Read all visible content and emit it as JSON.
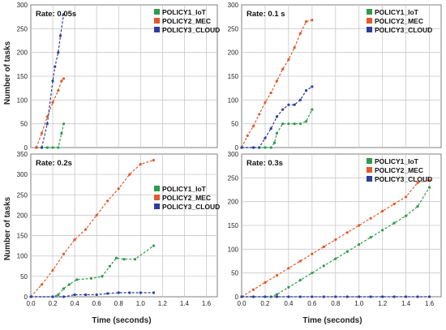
{
  "figure": {
    "ylabel": "Number of tasks",
    "xlabel": "Time (seconds)"
  },
  "colors": {
    "POLICY1_IoT": "#2e9b4a",
    "POLICY2_MEC": "#e2592a",
    "POLICY3_CLOUD": "#2c3f99"
  },
  "chart_data": [
    {
      "type": "line",
      "title": "Rate: 0.05s",
      "xlabel": "",
      "ylabel": "Number of tasks",
      "xlim": [
        0,
        1.7
      ],
      "ylim": [
        0,
        300
      ],
      "yticks": [
        0,
        50,
        100,
        150,
        200,
        250,
        300
      ],
      "xticks": [],
      "grid": true,
      "legend": "top-right",
      "series": [
        {
          "name": "POLICY1_IoT",
          "color": "#2e9b4a",
          "x": [
            0.05,
            0.1,
            0.15,
            0.2,
            0.25,
            0.28,
            0.3
          ],
          "y": [
            0,
            0,
            0,
            0,
            0,
            30,
            50
          ]
        },
        {
          "name": "POLICY2_MEC",
          "color": "#e2592a",
          "x": [
            0.05,
            0.1,
            0.15,
            0.2,
            0.25,
            0.28,
            0.3
          ],
          "y": [
            0,
            30,
            65,
            95,
            120,
            140,
            145
          ]
        },
        {
          "name": "POLICY3_CLOUD",
          "color": "#2c3f99",
          "x": [
            0.1,
            0.15,
            0.2,
            0.22,
            0.25,
            0.27,
            0.3
          ],
          "y": [
            0,
            50,
            140,
            170,
            200,
            235,
            280
          ]
        }
      ]
    },
    {
      "type": "line",
      "title": "Rate: 0.1 s",
      "xlabel": "",
      "ylabel": "",
      "xlim": [
        0,
        1.7
      ],
      "ylim": [
        0,
        300
      ],
      "yticks": [
        0,
        50,
        100,
        150,
        200,
        250,
        300
      ],
      "xticks": [],
      "grid": true,
      "legend": "top-right",
      "series": [
        {
          "name": "POLICY1_IoT",
          "color": "#2e9b4a",
          "x": [
            0.0,
            0.1,
            0.2,
            0.25,
            0.28,
            0.3,
            0.35,
            0.4,
            0.45,
            0.5,
            0.55,
            0.6
          ],
          "y": [
            0,
            0,
            0,
            0,
            10,
            30,
            50,
            50,
            50,
            50,
            55,
            80
          ]
        },
        {
          "name": "POLICY2_MEC",
          "color": "#e2592a",
          "x": [
            0.0,
            0.05,
            0.1,
            0.15,
            0.2,
            0.25,
            0.3,
            0.35,
            0.4,
            0.45,
            0.5,
            0.55,
            0.6
          ],
          "y": [
            0,
            25,
            45,
            70,
            95,
            115,
            140,
            165,
            185,
            210,
            240,
            265,
            268
          ]
        },
        {
          "name": "POLICY3_CLOUD",
          "color": "#2c3f99",
          "x": [
            0.0,
            0.1,
            0.15,
            0.2,
            0.25,
            0.3,
            0.35,
            0.4,
            0.45,
            0.5,
            0.55,
            0.6
          ],
          "y": [
            0,
            0,
            0,
            20,
            40,
            65,
            80,
            90,
            90,
            100,
            120,
            128
          ]
        }
      ]
    },
    {
      "type": "line",
      "title": "Rate: 0.2s",
      "xlabel": "Time (seconds)",
      "ylabel": "Number of tasks",
      "xlim": [
        0,
        1.7
      ],
      "ylim": [
        0,
        350
      ],
      "yticks": [
        0,
        50,
        100,
        150,
        200,
        250,
        300,
        350
      ],
      "xticks": [
        0.0,
        0.2,
        0.4,
        0.6,
        0.8,
        1.0,
        1.2,
        1.4,
        1.6
      ],
      "grid": true,
      "legend": "center-right",
      "series": [
        {
          "name": "POLICY1_IoT",
          "color": "#2e9b4a",
          "x": [
            0.0,
            0.2,
            0.25,
            0.3,
            0.35,
            0.42,
            0.55,
            0.65,
            0.72,
            0.78,
            0.85,
            0.95,
            1.12
          ],
          "y": [
            0,
            0,
            5,
            20,
            30,
            42,
            45,
            50,
            75,
            95,
            92,
            92,
            125
          ]
        },
        {
          "name": "POLICY2_MEC",
          "color": "#e2592a",
          "x": [
            0.0,
            0.1,
            0.2,
            0.3,
            0.4,
            0.5,
            0.6,
            0.7,
            0.8,
            0.9,
            1.0,
            1.12
          ],
          "y": [
            0,
            30,
            65,
            105,
            140,
            165,
            200,
            235,
            265,
            300,
            325,
            335
          ]
        },
        {
          "name": "POLICY3_CLOUD",
          "color": "#2c3f99",
          "x": [
            0.0,
            0.2,
            0.3,
            0.4,
            0.5,
            0.6,
            0.7,
            0.8,
            0.9,
            1.0,
            1.12
          ],
          "y": [
            0,
            0,
            0,
            5,
            5,
            5,
            8,
            10,
            10,
            10,
            10
          ]
        }
      ]
    },
    {
      "type": "line",
      "title": "Rate: 0.3s",
      "xlabel": "Time (seconds)",
      "ylabel": "",
      "xlim": [
        0,
        1.7
      ],
      "ylim": [
        0,
        300
      ],
      "yticks": [
        0,
        50,
        100,
        150,
        200,
        250,
        300
      ],
      "xticks": [
        0.0,
        0.2,
        0.4,
        0.6,
        0.8,
        1.0,
        1.2,
        1.4,
        1.6
      ],
      "grid": true,
      "legend": "top-right",
      "series": [
        {
          "name": "POLICY1_IoT",
          "color": "#2e9b4a",
          "x": [
            0.0,
            0.25,
            0.3,
            0.4,
            0.5,
            0.6,
            0.7,
            0.8,
            0.9,
            1.0,
            1.1,
            1.2,
            1.3,
            1.4,
            1.5,
            1.6
          ],
          "y": [
            0,
            0,
            5,
            20,
            35,
            50,
            65,
            80,
            95,
            110,
            125,
            140,
            155,
            170,
            190,
            230
          ]
        },
        {
          "name": "POLICY2_MEC",
          "color": "#e2592a",
          "x": [
            0.0,
            0.1,
            0.2,
            0.3,
            0.4,
            0.5,
            0.6,
            0.7,
            0.8,
            0.9,
            1.0,
            1.1,
            1.2,
            1.3,
            1.4,
            1.5,
            1.6
          ],
          "y": [
            0,
            15,
            30,
            45,
            60,
            75,
            90,
            105,
            120,
            135,
            150,
            165,
            180,
            195,
            210,
            240,
            245
          ]
        },
        {
          "name": "POLICY3_CLOUD",
          "color": "#2c3f99",
          "x": [
            0.0,
            0.1,
            0.2,
            0.3,
            0.4,
            0.5,
            0.6,
            0.7,
            0.8,
            0.9,
            1.0,
            1.1,
            1.2,
            1.3,
            1.4,
            1.5,
            1.6
          ],
          "y": [
            0,
            0,
            0,
            0,
            0,
            0,
            0,
            0,
            0,
            0,
            0,
            0,
            0,
            0,
            0,
            0,
            0
          ]
        }
      ]
    }
  ]
}
